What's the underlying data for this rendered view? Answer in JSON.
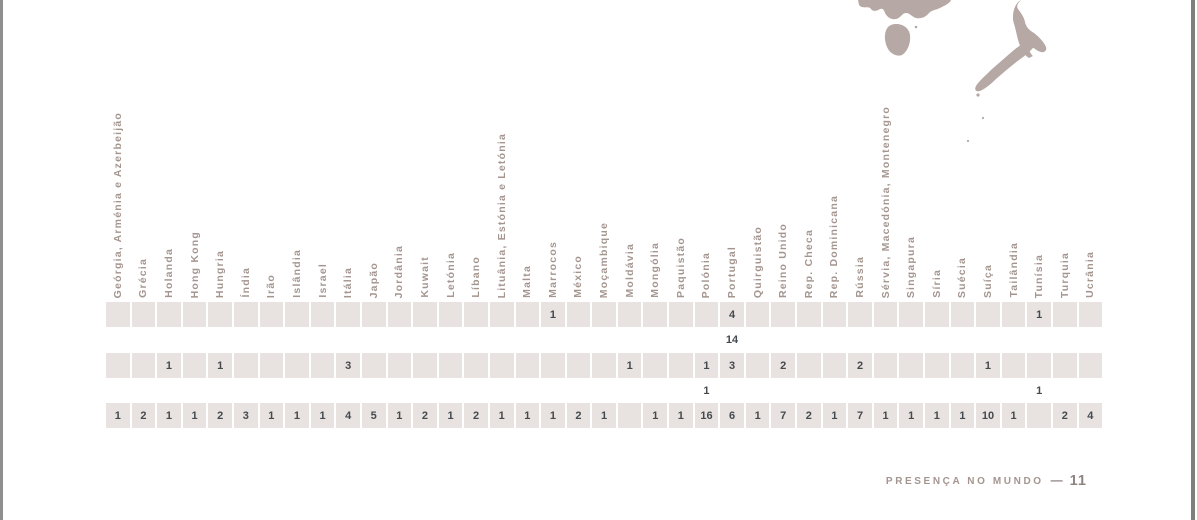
{
  "footer": {
    "label": "PRESENÇA NO MUNDO",
    "separator": "—",
    "page_number": "11"
  },
  "colors": {
    "label_taupe": "#a4958f",
    "map_fill": "#b6a8a4",
    "band_fill": "#e8e2e1",
    "number_ink": "#454a4e",
    "frame_gray": "#8f8f8f"
  },
  "map": {
    "regions": [
      "australia-southeast",
      "tasmania",
      "new-zealand-north-island",
      "new-zealand-south-island",
      "small-islands"
    ]
  },
  "chart_data": {
    "type": "table",
    "columns": [
      "Geórgia, Arménia e Azerbeijão",
      "Grécia",
      "Holanda",
      "Hong Kong",
      "Hungria",
      "Índia",
      "Irão",
      "Islândia",
      "Israel",
      "Itália",
      "Japão",
      "Jordânia",
      "Kuwait",
      "Letónia",
      "Líbano",
      "Lituânia, Estónia e Letónia",
      "Malta",
      "Marrocos",
      "México",
      "Moçambique",
      "Moldávia",
      "Mongólia",
      "Paquistão",
      "Polónia",
      "Portugal",
      "Quirguistão",
      "Reino Unido",
      "Rep. Checa",
      "Rep. Dominicana",
      "Rússia",
      "Sérvia, Macedónia, Montenegro",
      "Singapura",
      "Síria",
      "Suécia",
      "Suíça",
      "Tailândia",
      "Tunísia",
      "Turquia",
      "Ucrânia"
    ],
    "rows": [
      {
        "band": true,
        "values": [
          "",
          "",
          "",
          "",
          "",
          "",
          "",
          "",
          "",
          "",
          "",
          "",
          "",
          "",
          "",
          "",
          "",
          "1",
          "",
          "",
          "",
          "",
          "",
          "",
          "4",
          "",
          "",
          "",
          "",
          "",
          "",
          "",
          "",
          "",
          "",
          "",
          "1",
          "",
          ""
        ]
      },
      {
        "band": false,
        "values": [
          "",
          "",
          "",
          "",
          "",
          "",
          "",
          "",
          "",
          "",
          "",
          "",
          "",
          "",
          "",
          "",
          "",
          "",
          "",
          "",
          "",
          "",
          "",
          "",
          "14",
          "",
          "",
          "",
          "",
          "",
          "",
          "",
          "",
          "",
          "",
          "",
          "",
          "",
          ""
        ]
      },
      {
        "band": true,
        "values": [
          "",
          "",
          "1",
          "",
          "1",
          "",
          "",
          "",
          "",
          "3",
          "",
          "",
          "",
          "",
          "",
          "",
          "",
          "",
          "",
          "",
          "1",
          "",
          "",
          "1",
          "3",
          "",
          "2",
          "",
          "",
          "2",
          "",
          "",
          "",
          "",
          "1",
          "",
          "",
          "",
          ""
        ]
      },
      {
        "band": false,
        "values": [
          "",
          "",
          "",
          "",
          "",
          "",
          "",
          "",
          "",
          "",
          "",
          "",
          "",
          "",
          "",
          "",
          "",
          "",
          "",
          "",
          "",
          "",
          "",
          "1",
          "",
          "",
          "",
          "",
          "",
          "",
          "",
          "",
          "",
          "",
          "",
          "",
          "1",
          "",
          ""
        ]
      },
      {
        "band": true,
        "values": [
          "1",
          "2",
          "1",
          "1",
          "2",
          "3",
          "1",
          "1",
          "1",
          "4",
          "5",
          "1",
          "2",
          "1",
          "2",
          "1",
          "1",
          "1",
          "2",
          "1",
          "",
          "1",
          "1",
          "16",
          "6",
          "1",
          "7",
          "2",
          "1",
          "7",
          "1",
          "1",
          "1",
          "1",
          "10",
          "1",
          "",
          "2",
          "4"
        ]
      }
    ]
  }
}
